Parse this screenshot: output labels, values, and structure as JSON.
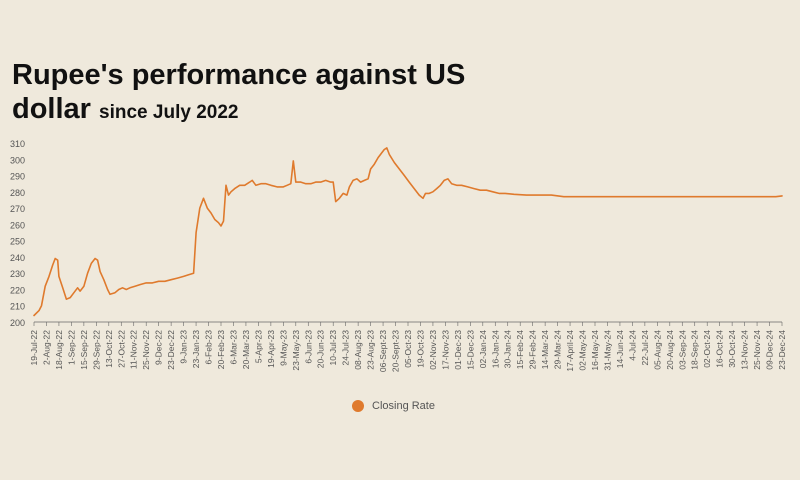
{
  "title": "Rupee's performance against US",
  "title_line2": "dollar",
  "subtitle": "since July 2022",
  "legend_label": "Closing Rate",
  "colors": {
    "line": "#df7a2d",
    "axis": "#666666",
    "text": "#555555",
    "background": "#efe9dc"
  },
  "chart_data": {
    "type": "line",
    "title": "Rupee's performance against US dollar since July 2022",
    "xlabel": "",
    "ylabel": "",
    "ylim": [
      200,
      310
    ],
    "yticks": [
      200,
      210,
      220,
      230,
      240,
      250,
      260,
      270,
      280,
      290,
      300,
      310
    ],
    "grid": false,
    "legend_position": "bottom-center",
    "categories": [
      "19-Jul-22",
      "2-Aug-22",
      "18-Aug-22",
      "1-Sep-22",
      "15-Sep-22",
      "29-Sep-22",
      "13-Oct-22",
      "27-Oct-22",
      "11-Nov-22",
      "25-Nov-22",
      "9-Dec-22",
      "23-Dec-22",
      "9-Jan-23",
      "23-Jan-23",
      "6-Feb-23",
      "20-Feb-23",
      "6-Mar-23",
      "20-Mar-23",
      "5-Apr-23",
      "19-Apr-23",
      "9-May-23",
      "23-May-23",
      "6-Jun-23",
      "20-Jun-23",
      "10-Jul-23",
      "24-Jul-23",
      "08-Aug-23",
      "23-Aug-23",
      "06-Sept-23",
      "20-Sept-23",
      "05-Oct-23",
      "19-Oct-23",
      "02-Nov-23",
      "17-Nov-23",
      "01-Dec-23",
      "15-Dec-23",
      "02-Jan-24",
      "16-Jan-24",
      "30-Jan-24",
      "15-Feb-24",
      "29-Feb-24",
      "14-Mar-24",
      "29-Mar-24",
      "17-April-24",
      "02-May-24",
      "16-May-24",
      "31-May-24",
      "14-Jun-24",
      "4-Jul-24",
      "22-Jul-24",
      "05-Aug-24",
      "20-Aug-24",
      "03-Sep-24",
      "18-Sep-24",
      "02-Oct-24",
      "16-Oct-24",
      "30-Oct-24",
      "13-Nov-24",
      "25-Nov-24",
      "09-Dec-24",
      "23-Dec-24"
    ],
    "series": [
      {
        "name": "Closing Rate",
        "points": [
          [
            0,
            204
          ],
          [
            0.4,
            207
          ],
          [
            0.6,
            210
          ],
          [
            0.9,
            222
          ],
          [
            1.2,
            228
          ],
          [
            1.5,
            235
          ],
          [
            1.7,
            239
          ],
          [
            1.9,
            238
          ],
          [
            2.0,
            228
          ],
          [
            2.3,
            221
          ],
          [
            2.6,
            214
          ],
          [
            2.9,
            215
          ],
          [
            3.2,
            218
          ],
          [
            3.5,
            221
          ],
          [
            3.7,
            219
          ],
          [
            4.0,
            222
          ],
          [
            4.3,
            230
          ],
          [
            4.6,
            236
          ],
          [
            4.9,
            239
          ],
          [
            5.1,
            238
          ],
          [
            5.3,
            231
          ],
          [
            5.6,
            226
          ],
          [
            5.9,
            220
          ],
          [
            6.1,
            217
          ],
          [
            6.5,
            218
          ],
          [
            6.8,
            220
          ],
          [
            7.1,
            221
          ],
          [
            7.4,
            220
          ],
          [
            7.7,
            221
          ],
          [
            8.1,
            222
          ],
          [
            8.5,
            223
          ],
          [
            9.0,
            224
          ],
          [
            9.5,
            224
          ],
          [
            10.0,
            225
          ],
          [
            10.5,
            225
          ],
          [
            11.0,
            226
          ],
          [
            11.5,
            227
          ],
          [
            12.0,
            228
          ],
          [
            12.4,
            229
          ],
          [
            12.8,
            230
          ],
          [
            13.0,
            255
          ],
          [
            13.3,
            270
          ],
          [
            13.6,
            276
          ],
          [
            13.9,
            270
          ],
          [
            14.2,
            267
          ],
          [
            14.5,
            263
          ],
          [
            14.8,
            261
          ],
          [
            15.0,
            259
          ],
          [
            15.2,
            262
          ],
          [
            15.4,
            284
          ],
          [
            15.6,
            278
          ],
          [
            15.8,
            280
          ],
          [
            16.1,
            282
          ],
          [
            16.5,
            284
          ],
          [
            16.9,
            284
          ],
          [
            17.3,
            286
          ],
          [
            17.5,
            287
          ],
          [
            17.8,
            284
          ],
          [
            18.2,
            285
          ],
          [
            18.6,
            285
          ],
          [
            19.0,
            284
          ],
          [
            19.5,
            283
          ],
          [
            20.0,
            283
          ],
          [
            20.3,
            284
          ],
          [
            20.6,
            285
          ],
          [
            20.8,
            299
          ],
          [
            21.0,
            286
          ],
          [
            21.4,
            286
          ],
          [
            21.8,
            285
          ],
          [
            22.2,
            285
          ],
          [
            22.6,
            286
          ],
          [
            23.0,
            286
          ],
          [
            23.4,
            287
          ],
          [
            23.8,
            286
          ],
          [
            24.0,
            286
          ],
          [
            24.2,
            274
          ],
          [
            24.5,
            276
          ],
          [
            24.8,
            279
          ],
          [
            25.1,
            278
          ],
          [
            25.3,
            283
          ],
          [
            25.6,
            287
          ],
          [
            25.9,
            288
          ],
          [
            26.2,
            286
          ],
          [
            26.5,
            287
          ],
          [
            26.8,
            288
          ],
          [
            27.0,
            294
          ],
          [
            27.3,
            297
          ],
          [
            27.6,
            301
          ],
          [
            27.9,
            304
          ],
          [
            28.1,
            306
          ],
          [
            28.3,
            307
          ],
          [
            28.5,
            303
          ],
          [
            28.9,
            298
          ],
          [
            29.3,
            294
          ],
          [
            29.7,
            290
          ],
          [
            30.1,
            286
          ],
          [
            30.5,
            282
          ],
          [
            30.9,
            278
          ],
          [
            31.2,
            276
          ],
          [
            31.4,
            279
          ],
          [
            31.7,
            279
          ],
          [
            32.0,
            280
          ],
          [
            32.3,
            282
          ],
          [
            32.6,
            284
          ],
          [
            32.9,
            287
          ],
          [
            33.2,
            288
          ],
          [
            33.5,
            285
          ],
          [
            33.9,
            284
          ],
          [
            34.3,
            284
          ],
          [
            34.8,
            283
          ],
          [
            35.3,
            282
          ],
          [
            35.8,
            281
          ],
          [
            36.3,
            281
          ],
          [
            36.8,
            280
          ],
          [
            37.3,
            279
          ],
          [
            37.8,
            279
          ],
          [
            38.5,
            278.5
          ],
          [
            39.5,
            278
          ],
          [
            40.5,
            278
          ],
          [
            41.5,
            278
          ],
          [
            42.5,
            277
          ],
          [
            43.5,
            277
          ],
          [
            44.5,
            277
          ],
          [
            45.5,
            277
          ],
          [
            46.5,
            277
          ],
          [
            47.5,
            277
          ],
          [
            48.5,
            277
          ],
          [
            49.5,
            277
          ],
          [
            50.5,
            277
          ],
          [
            51.5,
            277
          ],
          [
            52.5,
            277
          ],
          [
            53.5,
            277
          ],
          [
            54.5,
            277
          ],
          [
            55.5,
            277
          ],
          [
            56.5,
            277
          ],
          [
            57.5,
            277
          ],
          [
            58.5,
            277
          ],
          [
            59.5,
            277
          ],
          [
            60,
            277.5
          ]
        ]
      }
    ]
  }
}
